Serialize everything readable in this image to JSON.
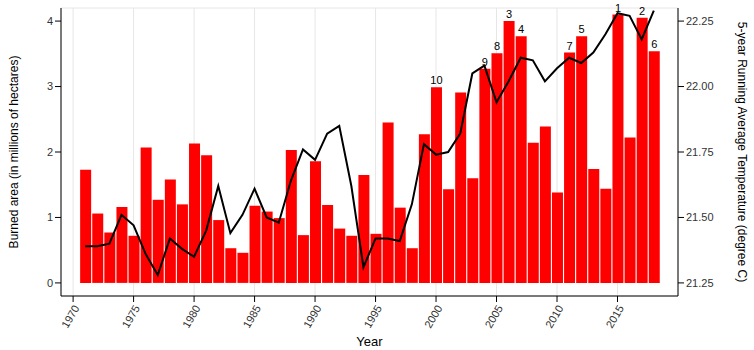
{
  "chart_data": {
    "type": "bar",
    "x_label": "Year",
    "y_label": "Burned area (in millions of hectares)",
    "y2_label": "5-year Running Average Temperature (degree C)",
    "x": [
      1971,
      1972,
      1973,
      1974,
      1975,
      1976,
      1977,
      1978,
      1979,
      1980,
      1981,
      1982,
      1983,
      1984,
      1985,
      1986,
      1987,
      1988,
      1989,
      1990,
      1991,
      1992,
      1993,
      1994,
      1995,
      1996,
      1997,
      1998,
      1999,
      2000,
      2001,
      2002,
      2003,
      2004,
      2005,
      2006,
      2007,
      2008,
      2009,
      2010,
      2011,
      2012,
      2013,
      2014,
      2015,
      2016,
      2017,
      2018
    ],
    "series": [
      {
        "type": "bar",
        "color": "#ff0000",
        "values": [
          1.73,
          1.06,
          0.77,
          1.16,
          0.72,
          2.07,
          1.27,
          1.58,
          1.2,
          2.13,
          1.95,
          0.96,
          0.53,
          0.46,
          1.18,
          1.09,
          0.99,
          2.03,
          0.73,
          1.86,
          1.19,
          0.83,
          0.72,
          1.65,
          0.75,
          2.45,
          1.15,
          0.53,
          2.27,
          2.99,
          1.43,
          2.91,
          1.6,
          3.27,
          3.51,
          4.0,
          3.77,
          2.14,
          2.39,
          1.38,
          3.52,
          3.77,
          1.74,
          1.44,
          4.1,
          2.22,
          4.05,
          3.54
        ]
      },
      {
        "type": "line",
        "color": "#000000",
        "axis": "y2",
        "values": [
          21.39,
          21.39,
          21.4,
          21.51,
          21.47,
          21.36,
          21.28,
          21.42,
          21.38,
          21.35,
          21.45,
          21.62,
          21.44,
          21.51,
          21.61,
          21.5,
          21.48,
          21.64,
          21.76,
          21.72,
          21.82,
          21.85,
          21.62,
          21.31,
          21.42,
          21.42,
          21.41,
          21.55,
          21.78,
          21.74,
          21.75,
          21.82,
          22.05,
          22.08,
          21.94,
          22.02,
          22.11,
          22.1,
          22.02,
          22.07,
          22.11,
          22.09,
          22.13,
          22.2,
          22.28,
          22.27,
          22.18,
          22.29
        ]
      }
    ],
    "annotations": [
      {
        "x": 2015,
        "text": "1"
      },
      {
        "x": 2017,
        "text": "2"
      },
      {
        "x": 2006,
        "text": "3"
      },
      {
        "x": 2007,
        "text": "4"
      },
      {
        "x": 2012,
        "text": "5"
      },
      {
        "x": 2018,
        "text": "6"
      },
      {
        "x": 2011,
        "text": "7"
      },
      {
        "x": 2005,
        "text": "8"
      },
      {
        "x": 2004,
        "text": "9"
      },
      {
        "x": 2000,
        "text": "10"
      }
    ],
    "xlim": [
      1969,
      2020
    ],
    "xticks": [
      1970,
      1975,
      1980,
      1985,
      1990,
      1995,
      2000,
      2005,
      2010,
      2015
    ],
    "ylim": [
      -0.2,
      4.2
    ],
    "yticks": [
      0,
      1,
      2,
      3,
      4
    ],
    "y2lim": [
      21.2,
      22.3
    ],
    "y2ticks": [
      21.25,
      21.5,
      21.75,
      22.0,
      22.25
    ],
    "grid": true
  }
}
